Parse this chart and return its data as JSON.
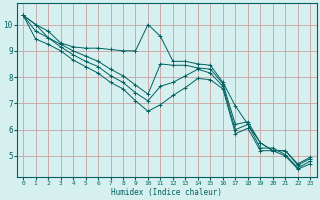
{
  "background_color": "#d6f0f0",
  "grid_color": "#c8a0a0",
  "line_color": "#006060",
  "marker_color": "#006060",
  "xlabel": "Humidex (Indice chaleur)",
  "xlim": [
    -0.5,
    23.5
  ],
  "ylim": [
    4.2,
    10.8
  ],
  "xticks": [
    0,
    1,
    2,
    3,
    4,
    5,
    6,
    7,
    8,
    9,
    10,
    11,
    12,
    13,
    14,
    15,
    16,
    17,
    18,
    19,
    20,
    21,
    22,
    23
  ],
  "yticks": [
    5,
    6,
    7,
    8,
    9,
    10
  ],
  "series": [
    [
      10.35,
      10.0,
      9.75,
      9.3,
      9.15,
      9.1,
      9.1,
      9.05,
      9.0,
      9.0,
      10.0,
      9.55,
      8.6,
      8.6,
      8.5,
      8.45,
      7.8,
      6.9,
      6.2,
      5.5,
      5.2,
      5.2,
      4.7,
      4.95
    ],
    [
      10.35,
      10.0,
      9.5,
      9.25,
      9.0,
      8.8,
      8.6,
      8.3,
      8.05,
      7.7,
      7.35,
      8.5,
      8.45,
      8.45,
      8.35,
      8.3,
      7.75,
      6.2,
      6.3,
      5.5,
      5.2,
      5.2,
      4.65,
      4.9
    ],
    [
      10.35,
      9.75,
      9.5,
      9.15,
      8.85,
      8.6,
      8.4,
      8.05,
      7.8,
      7.4,
      7.1,
      7.65,
      7.8,
      8.05,
      8.3,
      8.15,
      7.65,
      6.0,
      6.2,
      5.3,
      5.3,
      5.05,
      4.55,
      4.8
    ],
    [
      10.35,
      9.45,
      9.25,
      9.0,
      8.65,
      8.4,
      8.15,
      7.8,
      7.55,
      7.1,
      6.7,
      6.95,
      7.3,
      7.6,
      7.95,
      7.9,
      7.55,
      5.85,
      6.05,
      5.2,
      5.2,
      5.0,
      4.5,
      4.7
    ]
  ]
}
